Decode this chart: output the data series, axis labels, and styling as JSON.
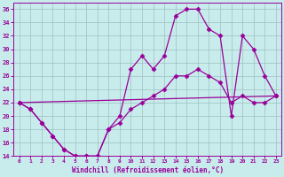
{
  "title": "",
  "xlabel": "Windchill (Refroidissement éolien,°C)",
  "ylabel": "",
  "bg_color": "#c8ecec",
  "line_color": "#990099",
  "grid_color": "#9dbfbf",
  "xlim_min": -0.5,
  "xlim_max": 23.5,
  "ylim_min": 14,
  "ylim_max": 37,
  "xticks": [
    0,
    1,
    2,
    3,
    4,
    5,
    6,
    7,
    8,
    9,
    10,
    11,
    12,
    13,
    14,
    15,
    16,
    17,
    18,
    19,
    20,
    21,
    22,
    23
  ],
  "yticks": [
    14,
    16,
    18,
    20,
    22,
    24,
    26,
    28,
    30,
    32,
    34,
    36
  ],
  "curve1_x": [
    0,
    1,
    2,
    3,
    4,
    5,
    6,
    7,
    8,
    9,
    10,
    11,
    12,
    13,
    14,
    15,
    16,
    17,
    18,
    19,
    20,
    21,
    22,
    23
  ],
  "curve1_y": [
    22,
    21,
    19,
    17,
    15,
    14,
    14,
    14,
    18,
    20,
    27,
    29,
    27,
    29,
    35,
    36,
    36,
    33,
    32,
    20,
    32,
    30,
    26,
    23
  ],
  "curve2_x": [
    0,
    1,
    2,
    3,
    4,
    5,
    6,
    7,
    8,
    9,
    10,
    11,
    12,
    13,
    14,
    15,
    16,
    17,
    18,
    19,
    20,
    21,
    22,
    23
  ],
  "curve2_y": [
    22,
    21,
    19,
    17,
    15,
    14,
    14,
    14,
    18,
    19,
    21,
    22,
    23,
    24,
    26,
    26,
    27,
    26,
    25,
    22,
    23,
    22,
    22,
    23
  ],
  "line_x": [
    0,
    23
  ],
  "line_y": [
    22,
    23
  ],
  "marker": "D",
  "markersize": 2.5,
  "linewidth": 0.9
}
